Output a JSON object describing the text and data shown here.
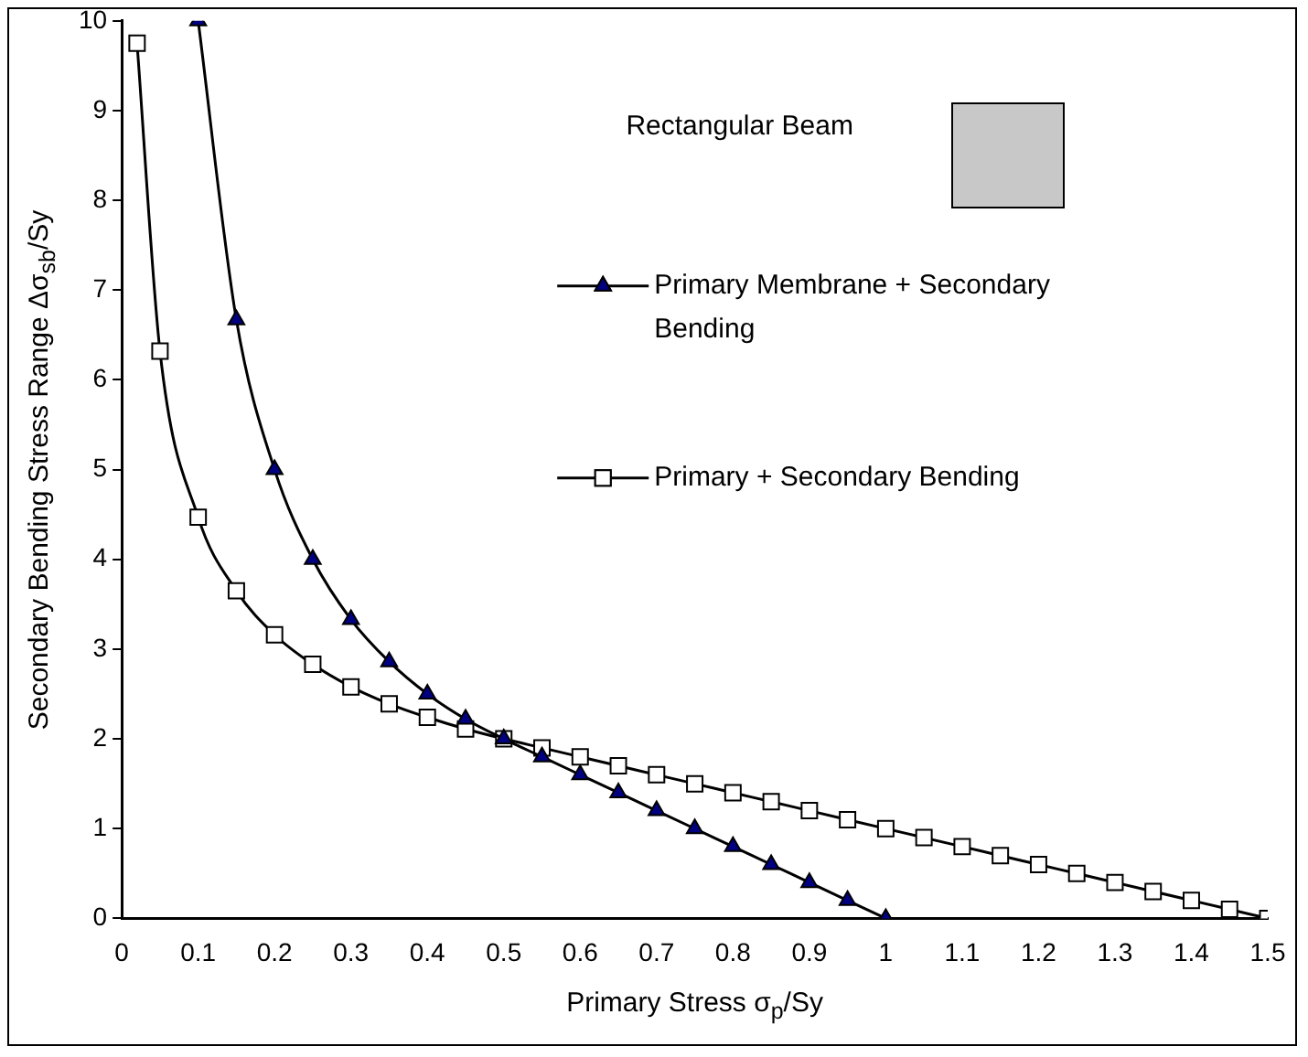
{
  "chart_data": {
    "type": "line",
    "xlabel": "Primary Stress σ$_{p}$/Sy",
    "ylabel": "Secondary Bending Stress Range  Δσ$_{sb}$/Sy",
    "annotations": [
      "Rectangular Beam"
    ],
    "xlim": [
      0,
      1.5
    ],
    "xticks": [
      0,
      0.1,
      0.2,
      0.3,
      0.4,
      0.5,
      0.6,
      0.7,
      0.8,
      0.9,
      1,
      1.1,
      1.2,
      1.3,
      1.4,
      1.5
    ],
    "ylim": [
      0,
      10
    ],
    "yticks": [
      0,
      1,
      2,
      3,
      4,
      5,
      6,
      7,
      8,
      9,
      10
    ],
    "grid": false,
    "legend": "top right",
    "series": [
      {
        "name": "Primary Membrane + Secondary Bending",
        "color": "#000080",
        "marker": "triangle",
        "x": [
          0.1,
          0.15,
          0.2,
          0.25,
          0.3,
          0.35,
          0.4,
          0.45,
          0.5,
          0.55,
          0.6,
          0.65,
          0.7,
          0.75,
          0.8,
          0.85,
          0.9,
          0.95,
          1
        ],
        "values": [
          10,
          6.67,
          5,
          4,
          3.33,
          2.86,
          2.5,
          2.22,
          2,
          1.8,
          1.6,
          1.4,
          1.2,
          1,
          0.8,
          0.6,
          0.4,
          0.2,
          0
        ]
      },
      {
        "name": "Primary + Secondary Bending",
        "color": "#000000",
        "marker": "square",
        "x": [
          0.02,
          0.05,
          0.1,
          0.15,
          0.2,
          0.25,
          0.3,
          0.35,
          0.4,
          0.45,
          0.5,
          0.55,
          0.6,
          0.65,
          0.7,
          0.75,
          0.8,
          0.85,
          0.9,
          0.95,
          1,
          1.05,
          1.1,
          1.15,
          1.2,
          1.25,
          1.3,
          1.35,
          1.4,
          1.45,
          1.5
        ],
        "values": [
          9.75,
          6.32,
          4.47,
          3.65,
          3.16,
          2.83,
          2.58,
          2.39,
          2.24,
          2.11,
          2,
          1.9,
          1.8,
          1.7,
          1.6,
          1.5,
          1.4,
          1.3,
          1.2,
          1.1,
          1,
          0.9,
          0.8,
          0.7,
          0.6,
          0.5,
          0.4,
          0.3,
          0.2,
          0.1,
          0
        ]
      }
    ]
  }
}
